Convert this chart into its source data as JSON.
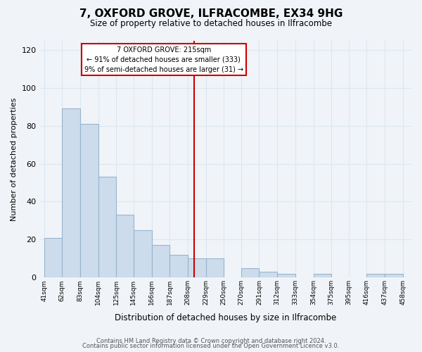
{
  "title": "7, OXFORD GROVE, ILFRACOMBE, EX34 9HG",
  "subtitle": "Size of property relative to detached houses in Ilfracombe",
  "xlabel": "Distribution of detached houses by size in Ilfracombe",
  "ylabel": "Number of detached properties",
  "bar_left_edges": [
    41,
    62,
    83,
    104,
    125,
    145,
    166,
    187,
    208,
    229,
    250,
    270,
    291,
    312,
    333,
    354,
    375,
    395,
    416,
    437
  ],
  "bar_widths": [
    21,
    21,
    21,
    21,
    20,
    21,
    21,
    21,
    21,
    21,
    20,
    21,
    21,
    21,
    21,
    21,
    20,
    21,
    21,
    21
  ],
  "bar_heights": [
    21,
    89,
    81,
    53,
    33,
    25,
    17,
    12,
    10,
    10,
    0,
    5,
    3,
    2,
    0,
    2,
    0,
    0,
    2,
    2
  ],
  "bar_color": "#ccdcec",
  "bar_edgecolor": "#99b4cc",
  "vline_x": 215,
  "vline_color": "#cc0000",
  "annotation_text_line1": "7 OXFORD GROVE: 215sqm",
  "annotation_text_line2": "← 91% of detached houses are smaller (333)",
  "annotation_text_line3": "9% of semi-detached houses are larger (31) →",
  "ylim": [
    0,
    125
  ],
  "yticks": [
    0,
    20,
    40,
    60,
    80,
    100,
    120
  ],
  "tick_labels": [
    "41sqm",
    "62sqm",
    "83sqm",
    "104sqm",
    "125sqm",
    "145sqm",
    "166sqm",
    "187sqm",
    "208sqm",
    "229sqm",
    "250sqm",
    "270sqm",
    "291sqm",
    "312sqm",
    "333sqm",
    "354sqm",
    "375sqm",
    "395sqm",
    "416sqm",
    "437sqm",
    "458sqm"
  ],
  "tick_positions": [
    41,
    62,
    83,
    104,
    125,
    145,
    166,
    187,
    208,
    229,
    250,
    270,
    291,
    312,
    333,
    354,
    375,
    395,
    416,
    437,
    458
  ],
  "xlim_left": 36,
  "xlim_right": 468,
  "footer1": "Contains HM Land Registry data © Crown copyright and database right 2024.",
  "footer2": "Contains public sector information licensed under the Open Government Licence v3.0.",
  "background_color": "#f0f4f8",
  "grid_color": "#dde6ef",
  "annotation_box_edgecolor": "#cc0000",
  "annotation_box_facecolor": "#ffffff"
}
